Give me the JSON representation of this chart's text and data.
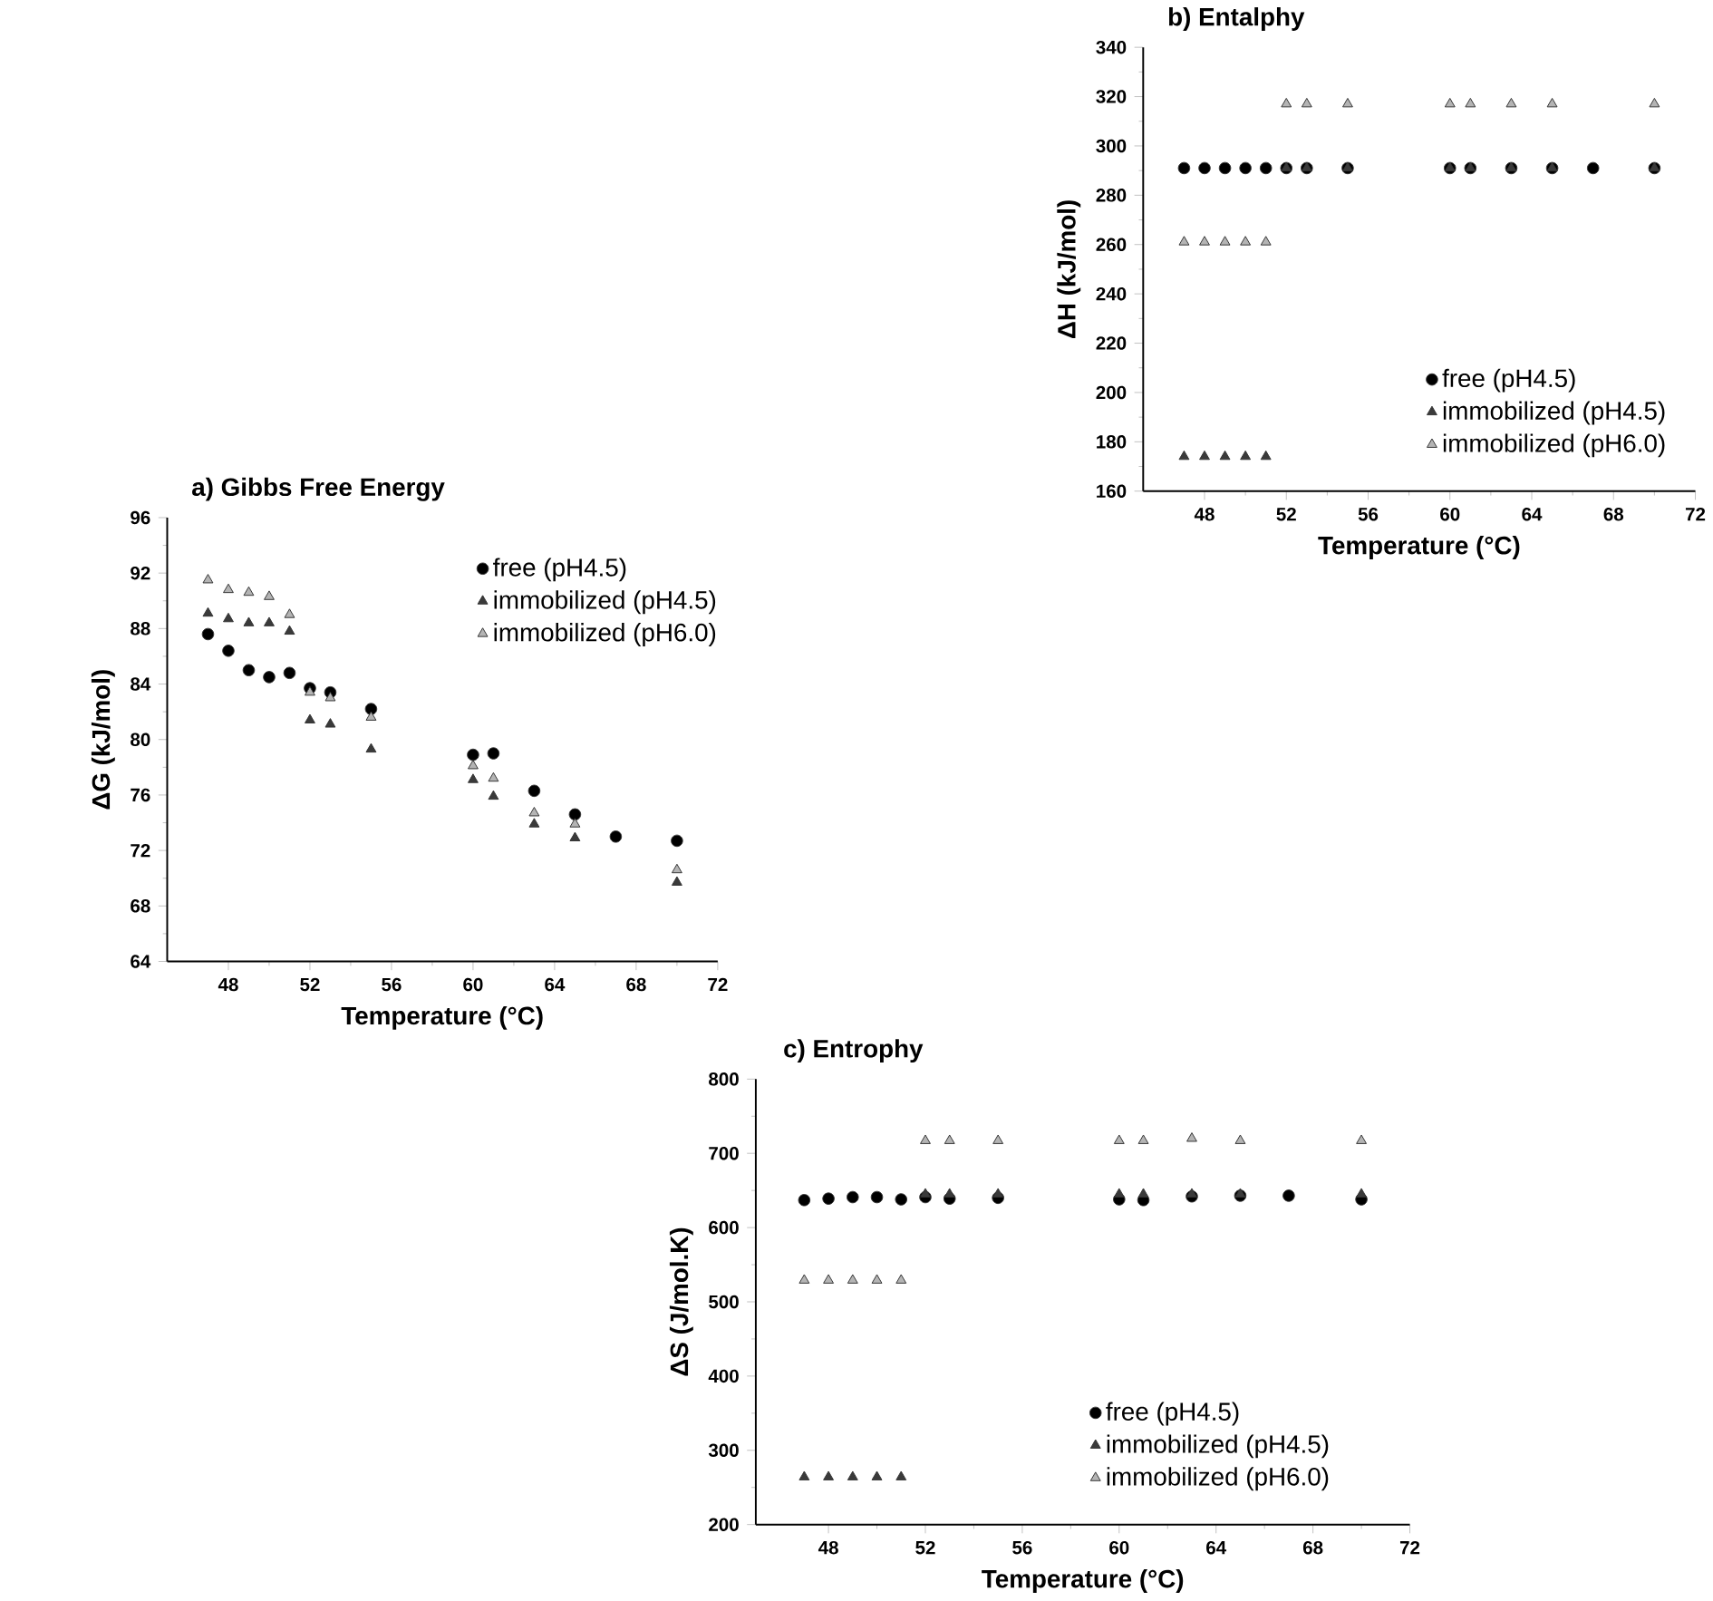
{
  "chart_data": [
    {
      "type": "scatter",
      "title": "a) Gibbs Free Energy",
      "xlabel": "Temperature (°C)",
      "ylabel": "ΔG (kJ/mol)",
      "xlim": [
        45,
        72
      ],
      "xticks": [
        48,
        52,
        56,
        60,
        64,
        68,
        72
      ],
      "ylim": [
        64,
        96
      ],
      "yticks": [
        64,
        68,
        72,
        76,
        80,
        84,
        88,
        92,
        96
      ],
      "legend": "top right",
      "grid": false,
      "series": [
        {
          "name": "free (pH4.5)",
          "color": "#000000",
          "marker": "circle",
          "x": [
            47,
            48,
            49,
            50,
            51,
            52,
            53,
            55,
            60,
            61,
            63,
            65,
            67,
            70
          ],
          "values": [
            87.6,
            86.4,
            85.0,
            84.5,
            84.8,
            83.7,
            83.4,
            82.2,
            78.9,
            79.0,
            76.3,
            74.6,
            73.0,
            72.7
          ]
        },
        {
          "name": "immobilized (pH4.5)",
          "color": "#3a3a3a",
          "marker": "triangle",
          "x": [
            47,
            48,
            49,
            50,
            51,
            52,
            53,
            55,
            60,
            61,
            63,
            65,
            70
          ],
          "values": [
            89.1,
            88.7,
            88.4,
            88.4,
            87.8,
            81.4,
            81.1,
            79.3,
            77.1,
            75.9,
            73.9,
            72.9,
            69.7
          ]
        },
        {
          "name": "immobilized (pH6.0)",
          "color": "#b4b4b4",
          "marker": "triangle",
          "x": [
            47,
            48,
            49,
            50,
            51,
            52,
            53,
            55,
            60,
            61,
            63,
            65,
            70
          ],
          "values": [
            91.5,
            90.8,
            90.6,
            90.3,
            89.0,
            83.4,
            83.0,
            81.6,
            78.1,
            77.2,
            74.7,
            73.9,
            70.6
          ]
        }
      ]
    },
    {
      "type": "scatter",
      "title": "b) Entalphy",
      "xlabel": "Temperature (°C)",
      "ylabel": "ΔH (kJ/mol)",
      "xlim": [
        45,
        72
      ],
      "xticks": [
        48,
        52,
        56,
        60,
        64,
        68,
        72
      ],
      "ylim": [
        160,
        340
      ],
      "yticks": [
        160,
        180,
        200,
        220,
        240,
        260,
        280,
        300,
        320,
        340
      ],
      "legend": "bottom right",
      "grid": false,
      "series": [
        {
          "name": "free (pH4.5)",
          "color": "#000000",
          "marker": "circle",
          "x": [
            47,
            48,
            49,
            50,
            51,
            52,
            53,
            55,
            60,
            61,
            63,
            65,
            67,
            70
          ],
          "values": [
            291,
            291,
            291,
            291,
            291,
            291,
            291,
            291,
            291,
            291,
            291,
            291,
            291,
            291
          ]
        },
        {
          "name": "immobilized (pH4.5)",
          "color": "#3a3a3a",
          "marker": "triangle",
          "x": [
            47,
            48,
            49,
            50,
            51,
            52,
            53,
            55,
            60,
            61,
            63,
            65,
            70
          ],
          "values": [
            174,
            174,
            174,
            174,
            174,
            291,
            291,
            291,
            291,
            291,
            291,
            291,
            291
          ]
        },
        {
          "name": "immobilized (pH6.0)",
          "color": "#b4b4b4",
          "marker": "triangle",
          "x": [
            47,
            48,
            49,
            50,
            51,
            52,
            53,
            55,
            60,
            61,
            63,
            65,
            70
          ],
          "values": [
            261,
            261,
            261,
            261,
            261,
            317,
            317,
            317,
            317,
            317,
            317,
            317,
            317
          ]
        }
      ]
    },
    {
      "type": "scatter",
      "title": "c) Entrophy",
      "xlabel": "Temperature (°C)",
      "ylabel": "ΔS (J/mol.K)",
      "xlim": [
        45,
        72
      ],
      "xticks": [
        48,
        52,
        56,
        60,
        64,
        68,
        72
      ],
      "ylim": [
        200,
        800
      ],
      "yticks": [
        200,
        300,
        400,
        500,
        600,
        700,
        800
      ],
      "legend": "bottom right",
      "grid": false,
      "series": [
        {
          "name": "free (pH4.5)",
          "color": "#000000",
          "marker": "circle",
          "x": [
            47,
            48,
            49,
            50,
            51,
            52,
            53,
            55,
            60,
            61,
            63,
            65,
            67,
            70
          ],
          "values": [
            637,
            639,
            641,
            641,
            638,
            641,
            639,
            640,
            638,
            637,
            642,
            643,
            643,
            638
          ]
        },
        {
          "name": "immobilized (pH4.5)",
          "color": "#3a3a3a",
          "marker": "triangle",
          "x": [
            47,
            48,
            49,
            50,
            51,
            52,
            53,
            55,
            60,
            61,
            63,
            65,
            70
          ],
          "values": [
            264,
            264,
            264,
            264,
            264,
            645,
            645,
            645,
            645,
            645,
            645,
            645,
            645
          ]
        },
        {
          "name": "immobilized (pH6.0)",
          "color": "#b4b4b4",
          "marker": "triangle",
          "x": [
            47,
            48,
            49,
            50,
            51,
            52,
            53,
            55,
            60,
            61,
            63,
            65,
            70
          ],
          "values": [
            529,
            529,
            529,
            529,
            529,
            717,
            717,
            717,
            717,
            717,
            720,
            717,
            717
          ]
        }
      ]
    }
  ]
}
